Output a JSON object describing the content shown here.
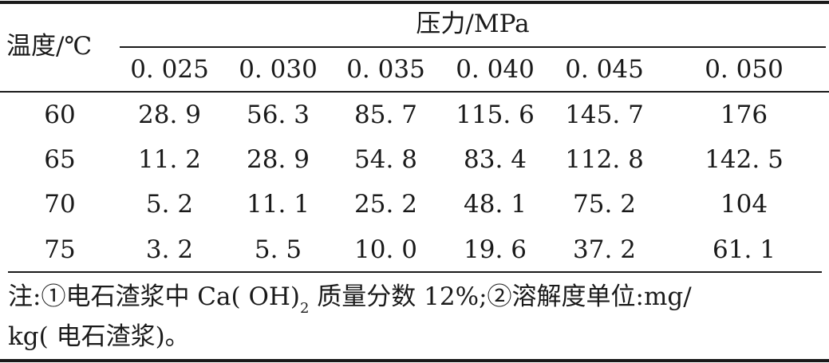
{
  "table": {
    "stub_header": "温度/℃",
    "group_header": "压力/MPa",
    "columns": [
      "0. 025",
      "0. 030",
      "0. 035",
      "0. 040",
      "0. 045",
      "0. 050"
    ],
    "rows": [
      {
        "temp": "60",
        "values": [
          "28. 9",
          "56. 3",
          "85. 7",
          "115. 6",
          "145. 7",
          "176"
        ]
      },
      {
        "temp": "65",
        "values": [
          "11. 2",
          "28. 9",
          "54. 8",
          "83. 4",
          "112. 8",
          "142. 5"
        ]
      },
      {
        "temp": "70",
        "values": [
          "5. 2",
          "11. 1",
          "25. 2",
          "48. 1",
          "75. 2",
          "104"
        ]
      },
      {
        "temp": "75",
        "values": [
          "3. 2",
          "5. 5",
          "10. 0",
          "19. 6",
          "37. 2",
          "61. 1"
        ]
      }
    ]
  },
  "note": {
    "line1_a": "注:①电石渣浆中 Ca( OH)",
    "line1_sub": "2",
    "line1_b": " 质量分数 12%;②溶解度单位:mg/",
    "line2": "kg( 电石渣浆)。"
  }
}
